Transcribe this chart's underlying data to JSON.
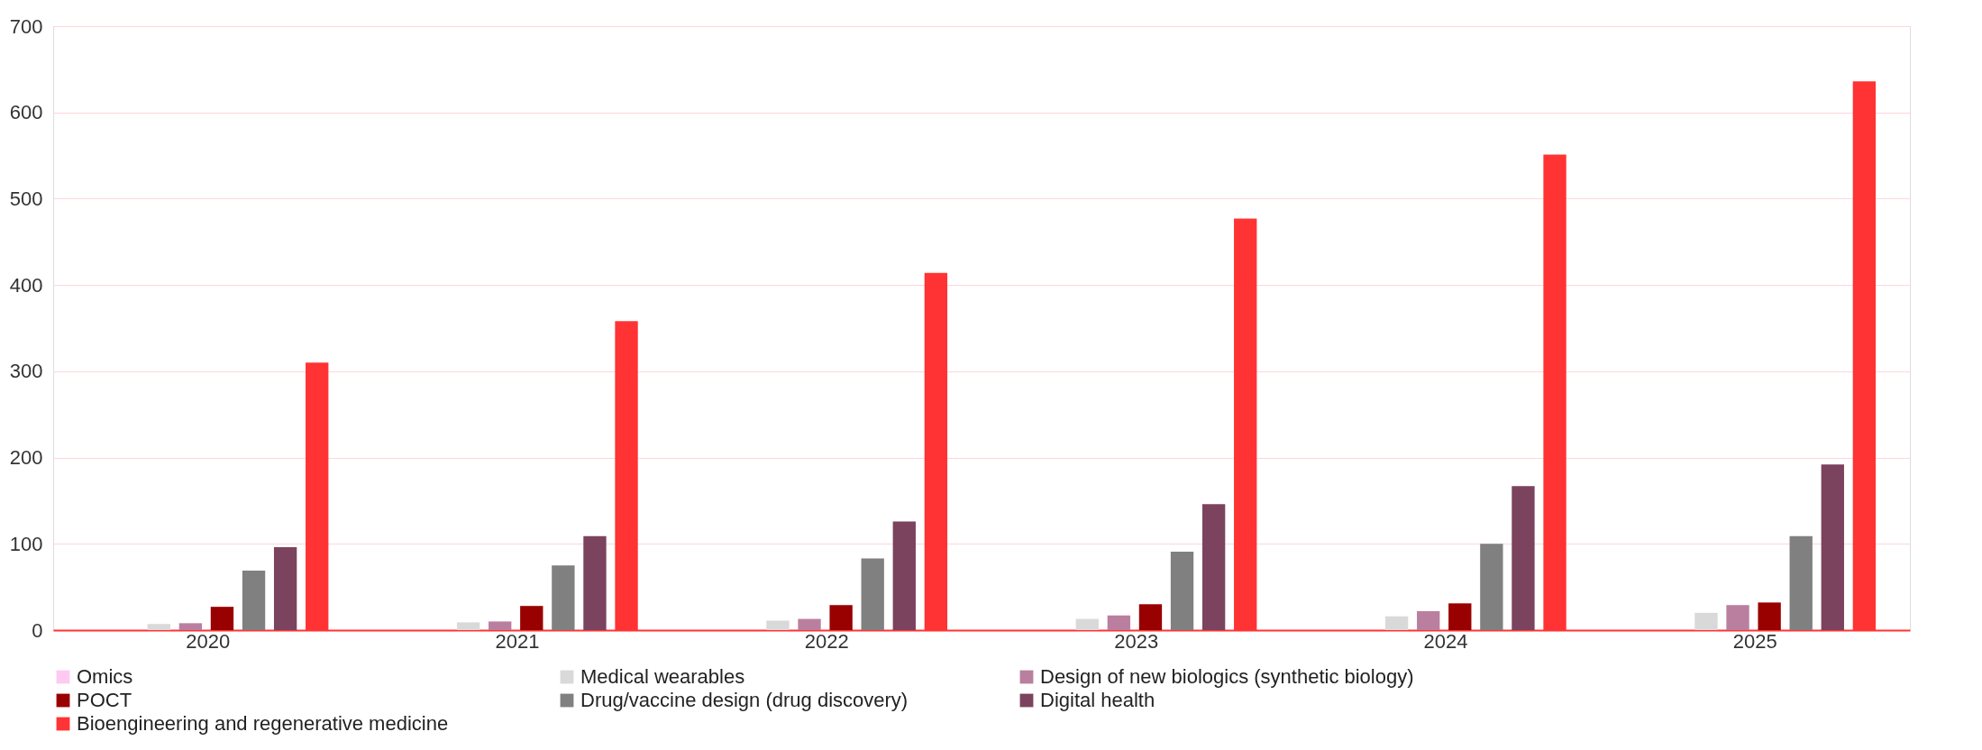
{
  "chart_data": {
    "type": "bar",
    "categories": [
      "2020",
      "2021",
      "2022",
      "2023",
      "2024",
      "2025"
    ],
    "series": [
      {
        "name": "Omics",
        "color": "#ffc9f2",
        "values": [
          0,
          0,
          0,
          0,
          0,
          0
        ]
      },
      {
        "name": "Medical wearables",
        "color": "#d9d9d9",
        "values": [
          7,
          9,
          11,
          13,
          16,
          20
        ]
      },
      {
        "name": "Design of new biologics (synthetic biology)",
        "color": "#ba7f9f",
        "values": [
          8,
          10,
          13,
          17,
          22,
          29
        ]
      },
      {
        "name": "POCT",
        "color": "#990000",
        "values": [
          27,
          28,
          29,
          30,
          31,
          32
        ]
      },
      {
        "name": "Drug/vaccine design (drug discovery)",
        "color": "#808080",
        "values": [
          69,
          75,
          83,
          91,
          100,
          109
        ]
      },
      {
        "name": "Digital health",
        "color": "#7b435e",
        "values": [
          96,
          109,
          126,
          146,
          167,
          192
        ]
      },
      {
        "name": "Bioengineering and regenerative medicine",
        "color": "#ff3333",
        "values": [
          310,
          358,
          414,
          477,
          551,
          636
        ]
      }
    ],
    "ylim": [
      0,
      700
    ],
    "yticks": [
      0,
      100,
      200,
      300,
      400,
      500,
      600,
      700
    ],
    "grid": "y",
    "legend": "bottom"
  }
}
